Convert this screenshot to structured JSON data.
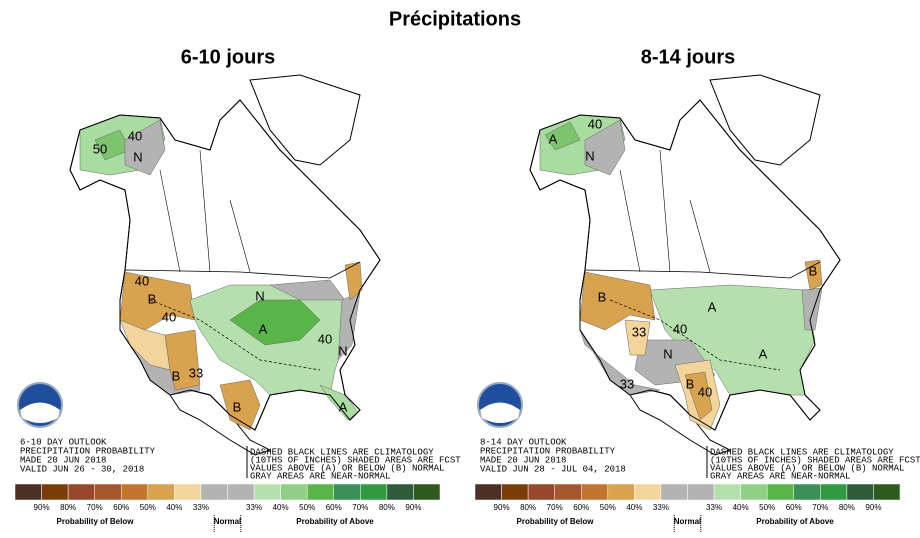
{
  "title": "Précipitations",
  "panels": [
    {
      "title": "6-10 jours",
      "outlook": [
        "6-10 DAY OUTLOOK",
        "PRECIPITATION PROBABILITY",
        "MADE  20 JUN 2018",
        "VALID  JUN 26 - 30, 2018"
      ],
      "note": [
        "DASHED BLACK LINES ARE CLIMATOLOGY",
        "(10THS OF INCHES) SHADED AREAS ARE FCST",
        "VALUES ABOVE (A) OR BELOW (B) NORMAL",
        "GRAY AREAS ARE NEAR-NORMAL"
      ],
      "map_labels": [
        "N",
        "40",
        "50",
        "B",
        "40",
        "B",
        "33",
        "A",
        "N",
        "40",
        "N",
        "B",
        "A",
        "40"
      ],
      "legend": {
        "colors": [
          "#4b3026",
          "#7a3d0a",
          "#97472e",
          "#a4572e",
          "#c0762f",
          "#d9a24f",
          "#f3d59b",
          "#b3b3b3",
          "#b3b3b3",
          "#b5e0ae",
          "#90d084",
          "#59b449",
          "#3d8f5a",
          "#2f9a3f",
          "#2f5d3c",
          "#2e5a1e"
        ],
        "labels": [
          "90%",
          "80%",
          "70%",
          "60%",
          "50%",
          "40%",
          "33%",
          "33%",
          "40%",
          "50%",
          "60%",
          "70%",
          "80%",
          "90%"
        ],
        "below": "Probability of Below",
        "normal": "Normal",
        "above": "Probability of Above"
      }
    },
    {
      "title": "8-14 jours",
      "outlook": [
        "8-14 DAY OUTLOOK",
        "PRECIPITATION PROBABILITY",
        "MADE  20 JUN 2018",
        "VALID  JUN 28 - JUL 04, 2018"
      ],
      "note": [
        "DASHED BLACK LINES ARE CLIMATOLOGY",
        "(10THS OF INCHES) SHADED AREAS ARE FCST",
        "VALUES ABOVE (A) OR BELOW (B) NORMAL",
        "GRAY AREAS ARE NEAR-NORMAL"
      ],
      "map_labels": [
        "A",
        "N",
        "40",
        "B",
        "33",
        "40",
        "A",
        "N",
        "33",
        "B",
        "A",
        "B",
        "40"
      ],
      "legend": {
        "colors": [
          "#4b3026",
          "#7a3d0a",
          "#97472e",
          "#a4572e",
          "#c0762f",
          "#d9a24f",
          "#f3d59b",
          "#b3b3b3",
          "#b3b3b3",
          "#b5e0ae",
          "#90d084",
          "#59b449",
          "#3d8f5a",
          "#2f9a3f",
          "#2f5d3c",
          "#2e5a1e"
        ],
        "labels": [
          "90%",
          "80%",
          "70%",
          "60%",
          "50%",
          "40%",
          "33%",
          "33%",
          "40%",
          "50%",
          "60%",
          "70%",
          "80%",
          "90%"
        ],
        "below": "Probability of Below",
        "normal": "Normal",
        "above": "Probability of Above"
      }
    }
  ]
}
